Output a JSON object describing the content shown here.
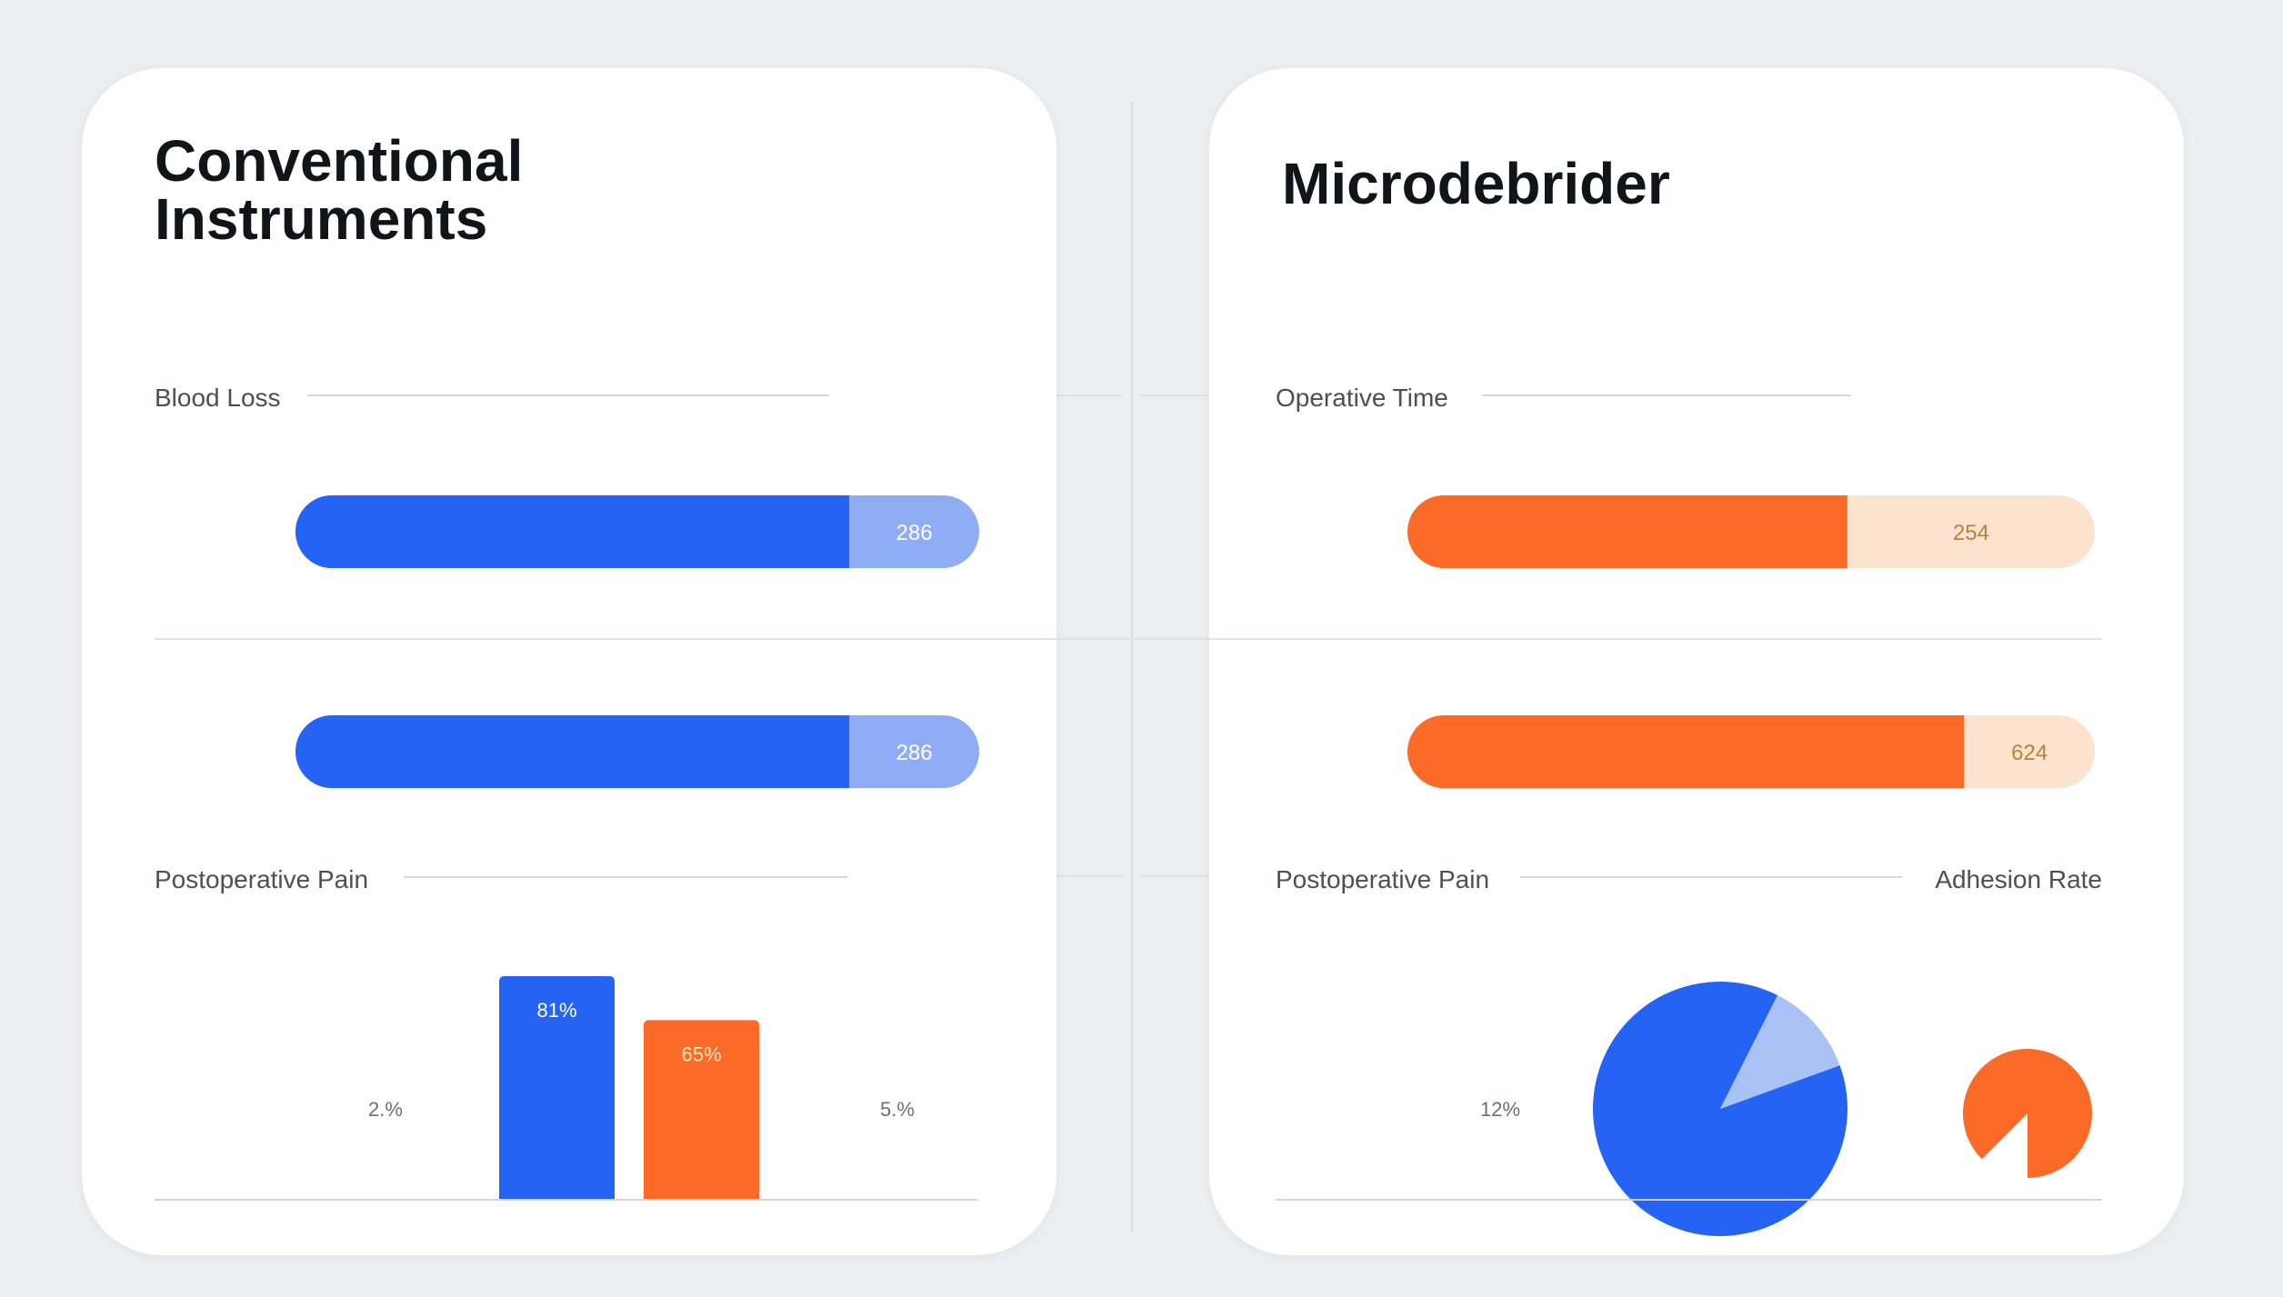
{
  "colors": {
    "blue": "#2563f5",
    "blue_light": "#8fadf5",
    "orange": "#fb6a27",
    "orange_light": "#fce3cd",
    "orange_text": "#b9813d",
    "text": "#111418",
    "label": "#4b4f56",
    "rule": "#d3d6db",
    "pie_light": "#a9c2f6"
  },
  "left_panel": {
    "title": "Conventional Instruments",
    "section_blood_loss": "Blood Loss",
    "section_pain": "Postoperative Pain"
  },
  "right_panel": {
    "title": "Microdebrider",
    "section_operative_time": "Operative Time",
    "section_pain": "Postoperative Pain",
    "section_adhesion": "Adhesion Rate"
  },
  "chart_data": [
    {
      "id": "left_bars",
      "type": "bar",
      "orientation": "horizontal",
      "bars": [
        {
          "label": "286",
          "fill_fraction": 0.81
        },
        {
          "label": "286",
          "fill_fraction": 0.81
        }
      ]
    },
    {
      "id": "left_pain",
      "type": "bar",
      "categories": [
        "",
        ""
      ],
      "values": [
        81,
        65
      ],
      "value_labels": [
        "81%",
        "65%"
      ],
      "side_labels": [
        "2.%",
        "5.%"
      ]
    },
    {
      "id": "right_bars",
      "type": "bar",
      "orientation": "horizontal",
      "bars": [
        {
          "label": "254",
          "fill_fraction": 0.64
        },
        {
          "label": "624",
          "fill_fraction": 0.81
        }
      ]
    },
    {
      "id": "right_pie",
      "type": "pie",
      "slices": [
        {
          "value": 88,
          "color_key": "blue"
        },
        {
          "value": 12,
          "color_key": "pie_light"
        }
      ],
      "side_label": "12%"
    },
    {
      "id": "adhesion_pie",
      "type": "pie",
      "slices": [
        {
          "value": 87.5,
          "color_key": "orange"
        },
        {
          "value": 12.5,
          "color_key": "none"
        }
      ]
    }
  ]
}
